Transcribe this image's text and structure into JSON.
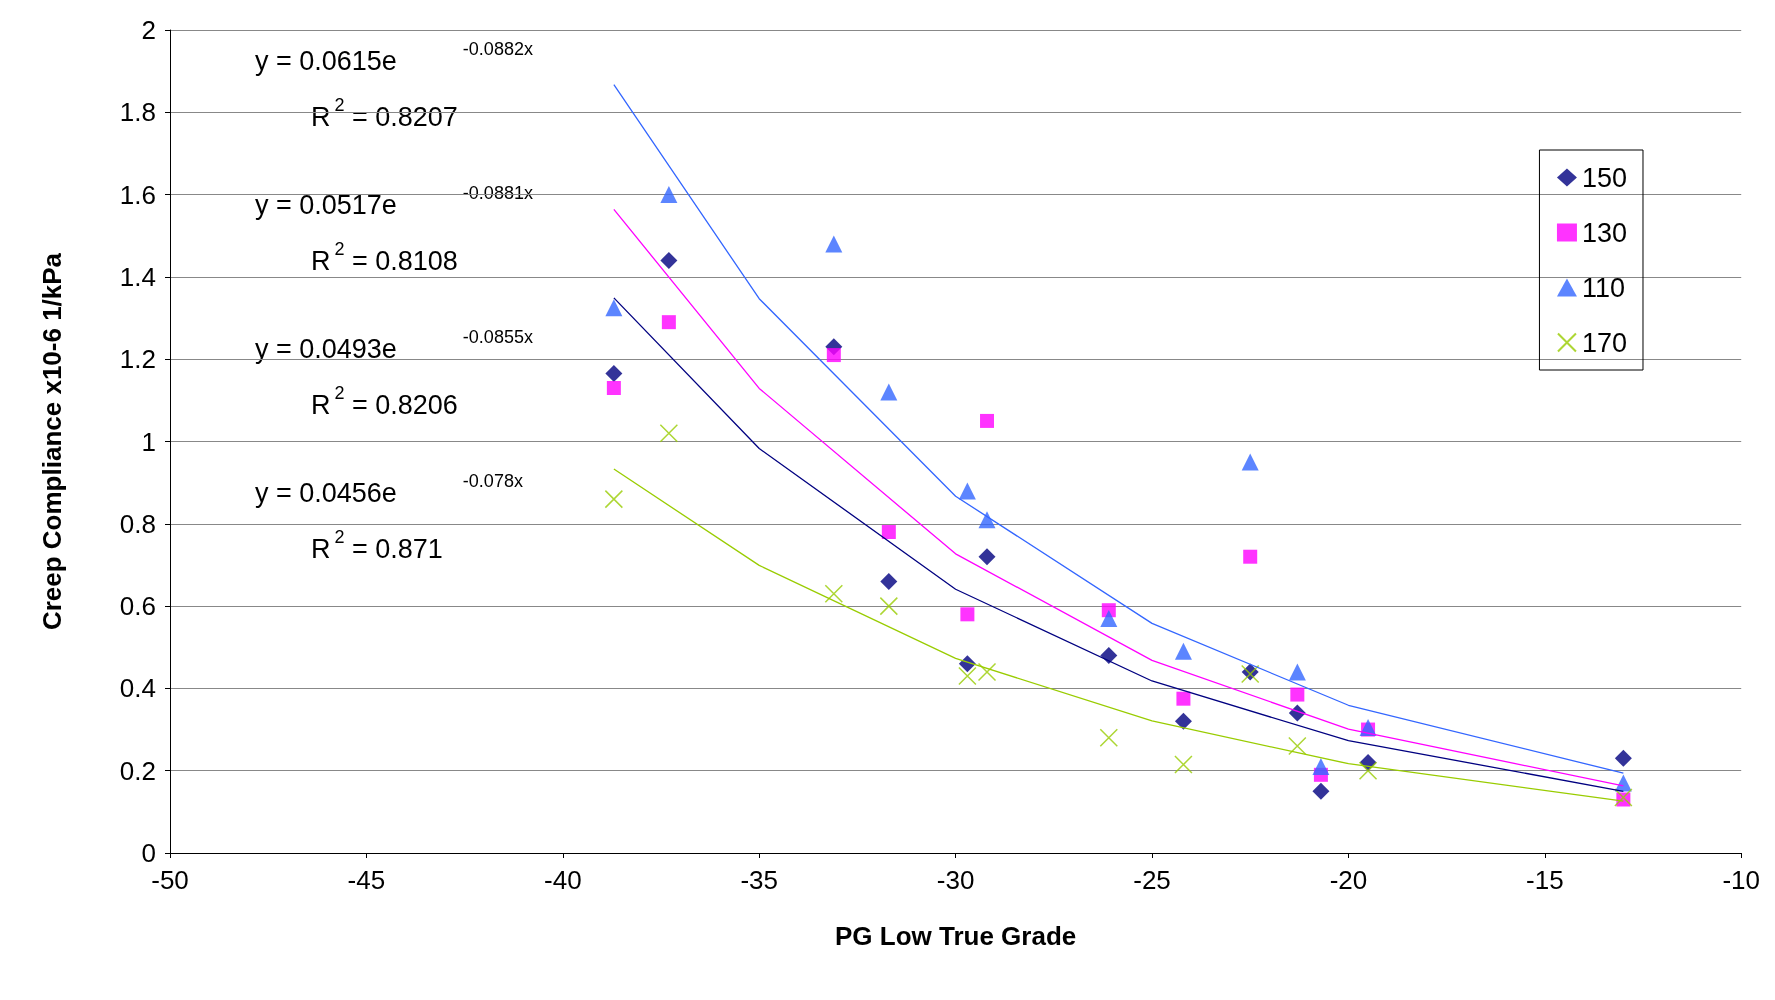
{
  "chart_data": {
    "type": "scatter",
    "xlabel": "PG Low True Grade",
    "ylabel": "Creep Compliance x10-6 1/kPa",
    "x": [
      -38.7,
      -37.3,
      -33.1,
      -31.7,
      -29.7,
      -29.2,
      -26.1,
      -24.2,
      -22.5,
      -21.3,
      -20.7,
      -19.5,
      -13.0
    ],
    "series": [
      {
        "name": "150",
        "color": "#000080",
        "marker": "diamond",
        "values": [
          1.165,
          1.44,
          1.23,
          0.66,
          0.46,
          0.72,
          0.48,
          0.32,
          0.44,
          0.34,
          0.15,
          0.22,
          0.23
        ]
      },
      {
        "name": "130",
        "color": "#ff00ff",
        "marker": "square",
        "values": [
          1.13,
          1.29,
          1.21,
          0.78,
          0.58,
          1.05,
          0.59,
          0.375,
          0.72,
          0.385,
          0.19,
          0.3,
          0.13
        ]
      },
      {
        "name": "110",
        "color": "#3366ff",
        "marker": "triangle",
        "values": [
          1.325,
          1.6,
          1.48,
          1.12,
          0.88,
          0.81,
          0.57,
          0.49,
          0.95,
          0.44,
          0.21,
          0.305,
          0.17
        ]
      },
      {
        "name": "170",
        "color": "#99cc00",
        "marker": "cross",
        "values": [
          0.86,
          1.02,
          0.63,
          0.6,
          0.43,
          0.44,
          0.28,
          0.215,
          0.435,
          0.26,
          null,
          0.2,
          0.135
        ]
      },
      {
        "type": "line",
        "color": "#3366ff",
        "x": [
          -38.7,
          -35,
          -30,
          -25,
          -20,
          -13
        ],
        "values": [
          1.867,
          1.347,
          0.867,
          0.558,
          0.359,
          0.194
        ]
      },
      {
        "type": "line",
        "color": "#ff00ff",
        "x": [
          -38.7,
          -35,
          -30,
          -25,
          -20,
          -13
        ],
        "values": [
          1.564,
          1.129,
          0.727,
          0.468,
          0.301,
          0.163
        ]
      },
      {
        "type": "line",
        "color": "#000080",
        "x": [
          -38.7,
          -35,
          -30,
          -25,
          -20,
          -13
        ],
        "values": [
          1.349,
          0.983,
          0.641,
          0.418,
          0.273,
          0.15
        ]
      },
      {
        "type": "line",
        "color": "#99cc00",
        "x": [
          -38.7,
          -35,
          -30,
          -25,
          -20,
          -13
        ],
        "values": [
          0.933,
          0.699,
          0.473,
          0.321,
          0.217,
          0.126
        ]
      }
    ],
    "xlim": [
      -50,
      -10
    ],
    "xticks": [
      -50,
      -45,
      -40,
      -35,
      -30,
      -25,
      -20,
      -15,
      -10
    ],
    "ylim": [
      0,
      2
    ],
    "yticks": [
      0,
      0.2,
      0.4,
      0.6,
      0.8,
      1,
      1.2,
      1.4,
      1.6,
      1.8,
      2
    ],
    "grid": "y",
    "legend": "top right",
    "annotations": [
      "y = 0.0615e$^{-0.0882x}$",
      "R$^{2}$ = 0.8207",
      "y = 0.0517e$^{-0.0881x}$",
      "R$^{2}$ = 0.8108",
      "y = 0.0493e$^{-0.0855x}$",
      "R$^{2}$ = 0.8206",
      "y = 0.0456e$^{-0.078x}$",
      "R$^{2}$ = 0.871"
    ]
  }
}
